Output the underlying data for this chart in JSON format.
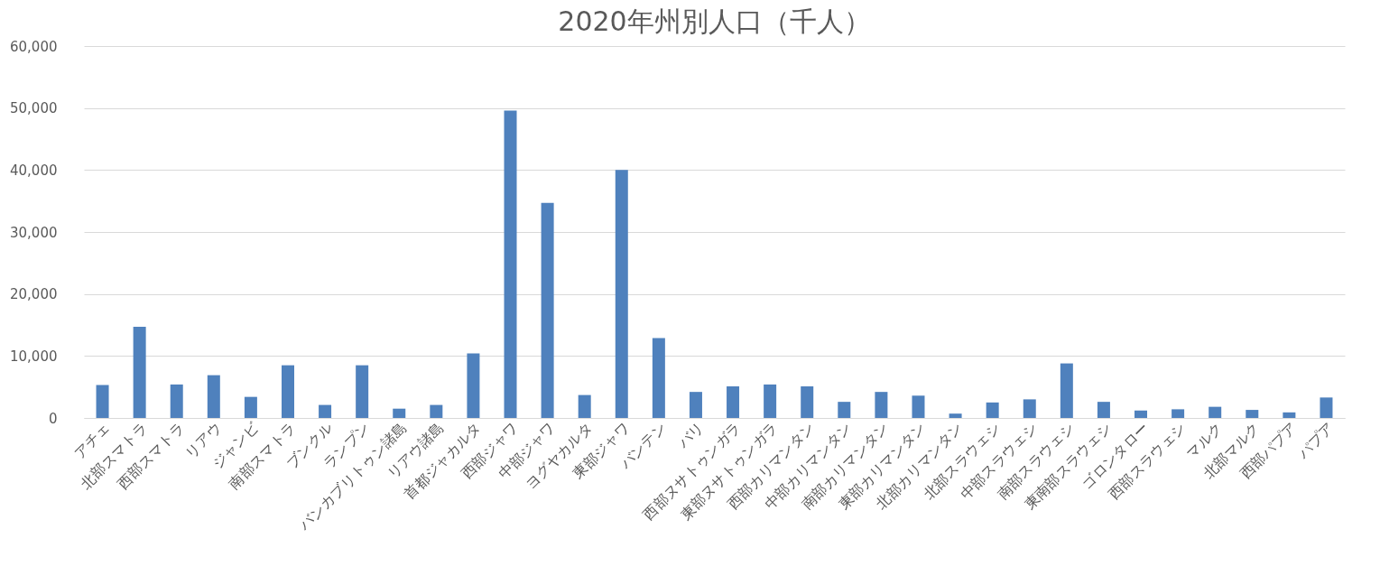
{
  "chart_data": {
    "type": "bar",
    "title": "2020年州別人口（千人）",
    "categories": [
      "アチェ",
      "北部スマトラ",
      "西部スマトラ",
      "リアウ",
      "ジャンビ",
      "南部スマトラ",
      "ブンクル",
      "ランプン",
      "バンカブリトゥン諸島",
      "リアウ諸島",
      "首都ジャカルタ",
      "西部ジャワ",
      "中部ジャワ",
      "ヨグヤカルタ",
      "東部ジャワ",
      "バンテン",
      "バリ",
      "西部ヌサトゥンガラ",
      "東部ヌサトゥンガラ",
      "西部カリマンタン",
      "中部カリマンタン",
      "南部カリマンタン",
      "東部カリマンタン",
      "北部カリマンタン",
      "北部スラウェシ",
      "中部スラウェシ",
      "南部スラウェシ",
      "東南部スラウェシ",
      "ゴロンタロー",
      "西部スラウェシ",
      "マルク",
      "北部マルク",
      "西部パプア",
      "パプア"
    ],
    "values": [
      5300,
      14700,
      5400,
      6900,
      3400,
      8500,
      2100,
      8500,
      1500,
      2100,
      10400,
      49600,
      34700,
      3700,
      40000,
      12900,
      4200,
      5100,
      5400,
      5100,
      2600,
      4200,
      3600,
      700,
      2500,
      3000,
      8800,
      2600,
      1200,
      1400,
      1800,
      1300,
      900,
      3300
    ],
    "color": "#4f81bd",
    "ylim": [
      0,
      60000
    ],
    "yticks": [
      0,
      {
        "value": 10000,
        "label": "10,000"
      },
      {
        "value": 20000,
        "label": "20,000"
      },
      {
        "value": 30000,
        "label": "30,000"
      },
      {
        "value": 40000,
        "label": "40,000"
      },
      {
        "value": 50000,
        "label": "50,000"
      },
      {
        "value": 60000,
        "label": "60,000"
      }
    ],
    "grid": "y"
  }
}
